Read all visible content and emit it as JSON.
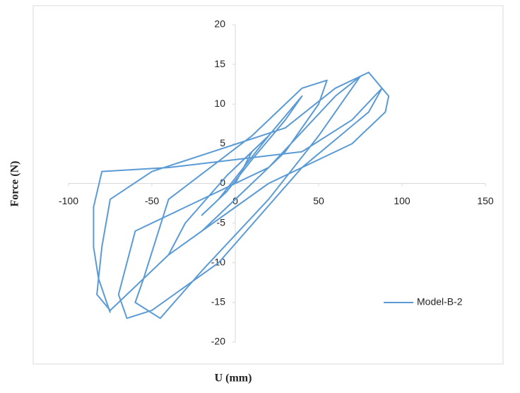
{
  "chart_data": {
    "type": "line",
    "x_label": "U (mm)",
    "y_label": "Force (N)",
    "xlim": [
      -100,
      150
    ],
    "xticks": [
      -100,
      -50,
      0,
      50,
      100,
      150
    ],
    "ylim": [
      -20,
      20
    ],
    "yticks": [
      -20,
      -15,
      -10,
      -5,
      0,
      5,
      10,
      15,
      20
    ],
    "legend": "right",
    "series": [
      {
        "name": "Model-B-2",
        "color": "#5b9bd5",
        "x": [
          0,
          10,
          20,
          5,
          -10,
          -20,
          -5,
          10,
          30,
          40,
          20,
          -5,
          -30,
          -40,
          -20,
          5,
          30,
          50,
          55,
          40,
          10,
          -40,
          -55,
          -60,
          -45,
          -20,
          20,
          50,
          70,
          75,
          60,
          20,
          -60,
          -70,
          -65,
          -50,
          -10,
          40,
          80,
          88,
          80,
          60,
          30,
          -50,
          -75,
          -80,
          -83,
          -75,
          -40,
          20,
          70,
          90,
          92,
          88,
          70,
          40,
          -40,
          -80,
          -85,
          -85,
          -82,
          -75
        ],
        "values": [
          0,
          4,
          6,
          2,
          -2,
          -4,
          -1,
          3,
          8,
          11,
          6,
          1,
          -5,
          -9,
          -6,
          -1,
          4,
          10,
          13,
          12,
          6,
          -2,
          -12,
          -15,
          -17,
          -11,
          -2,
          6,
          12,
          13.5,
          11,
          2,
          -6,
          -14,
          -17,
          -16,
          -10,
          2,
          9,
          12,
          14,
          12,
          7,
          1.5,
          -2,
          -8,
          -14,
          -16,
          -9,
          0,
          5,
          9,
          11,
          12,
          8,
          4,
          2,
          1.5,
          -3,
          -8,
          -12,
          -16.3
        ]
      }
    ]
  }
}
